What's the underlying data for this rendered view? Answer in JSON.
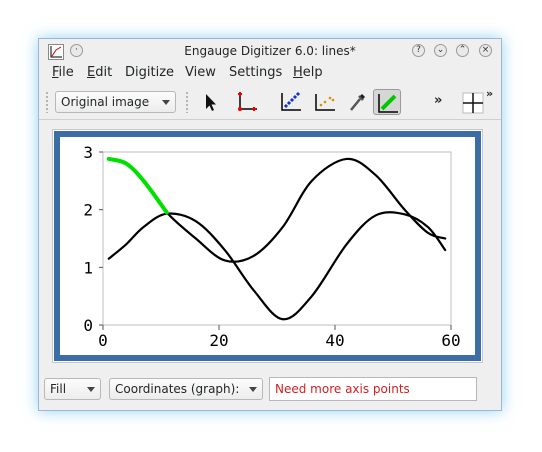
{
  "window": {
    "title": "Engauge Digitizer 6.0: lines*"
  },
  "menubar": {
    "items": [
      {
        "label": "File",
        "mnemonic": "F",
        "rest": "ile"
      },
      {
        "label": "Edit",
        "mnemonic": "E",
        "rest": "dit"
      },
      {
        "label": "Digitize",
        "mnemonic": "",
        "rest": "Digitize"
      },
      {
        "label": "View",
        "mnemonic": "",
        "rest": "View"
      },
      {
        "label": "Settings",
        "mnemonic": "",
        "rest": "Settings"
      },
      {
        "label": "Help",
        "mnemonic": "H",
        "rest": "elp"
      }
    ]
  },
  "toolbar": {
    "background_select": "Original image",
    "tools": [
      "select-pointer-icon",
      "axis-points-icon",
      "curve-points-icon",
      "point-match-icon",
      "color-picker-icon",
      "segment-fill-icon"
    ],
    "overflow_label": "»"
  },
  "chart_data": {
    "type": "line",
    "title": "",
    "xlabel": "",
    "ylabel": "",
    "xlim": [
      0,
      60
    ],
    "ylim": [
      0,
      3
    ],
    "x_ticks": [
      "0",
      "20",
      "40",
      "60"
    ],
    "y_ticks": [
      "0",
      "1",
      "2",
      "3"
    ],
    "grid": false,
    "series": [
      {
        "color": "#000000",
        "x": [
          1,
          4,
          7,
          11,
          16,
          21,
          26,
          31,
          36,
          42,
          47,
          52,
          56,
          59
        ],
        "y": [
          1.15,
          1.4,
          1.7,
          1.93,
          1.8,
          1.3,
          0.6,
          0.1,
          0.5,
          1.4,
          1.9,
          1.92,
          1.7,
          1.3
        ]
      },
      {
        "color": "#000000",
        "x": [
          1,
          4,
          7,
          11,
          16,
          21,
          26,
          31,
          36,
          42,
          47,
          52,
          56,
          59
        ],
        "y": [
          2.88,
          2.8,
          2.5,
          1.95,
          1.5,
          1.12,
          1.2,
          1.7,
          2.5,
          2.88,
          2.6,
          2.0,
          1.6,
          1.5
        ]
      },
      {
        "color": "#00e000",
        "x": [
          1,
          4,
          7,
          11
        ],
        "y": [
          2.88,
          2.8,
          2.5,
          1.95
        ]
      }
    ],
    "frame_color": "#3a6ea5"
  },
  "statusbar": {
    "fill_select": "Fill",
    "coords_select": "Coordinates (graph):",
    "message": "Need more axis points"
  }
}
